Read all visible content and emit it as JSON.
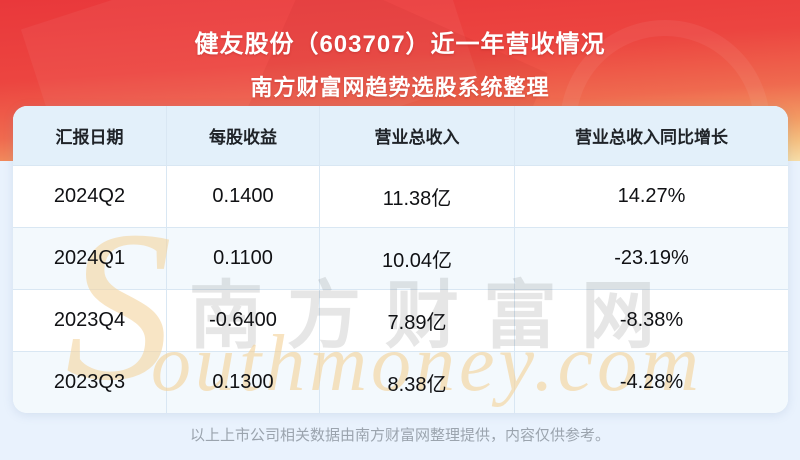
{
  "banner": {
    "title": "健友股份（603707）近一年营收情况",
    "subtitle": "南方财富网趋势选股系统整理"
  },
  "table": {
    "columns": [
      "汇报日期",
      "每股收益",
      "营业总收入",
      "营业总收入同比增长"
    ],
    "rows": [
      [
        "2024Q2",
        "0.1400",
        "11.38亿",
        "14.27%"
      ],
      [
        "2024Q1",
        "0.1100",
        "10.04亿",
        "-23.19%"
      ],
      [
        "2023Q4",
        "-0.6400",
        "7.89亿",
        "-8.38%"
      ],
      [
        "2023Q3",
        "0.1300",
        "8.38亿",
        "-4.28%"
      ]
    ]
  },
  "chart_data": {
    "type": "table",
    "title": "健友股份（603707）近一年营收情况",
    "columns": [
      "汇报日期",
      "每股收益",
      "营业总收入",
      "营业总收入同比增长"
    ],
    "periods": [
      "2024Q2",
      "2024Q1",
      "2023Q4",
      "2023Q3"
    ],
    "eps": [
      0.14,
      0.11,
      -0.64,
      0.13
    ],
    "total_revenue_yi": [
      11.38,
      10.04,
      7.89,
      8.38
    ],
    "revenue_yoy_growth_pct": [
      14.27,
      -23.19,
      -8.38,
      -4.28
    ]
  },
  "watermark": {
    "cjk": "南方财富网",
    "s": "S",
    "rest": "outhmoney.com"
  },
  "footer": {
    "disclaimer": "以上上市公司相关数据由南方财富网整理提供，内容仅供参考。"
  },
  "colors": {
    "banner_red_top": "#e9383b",
    "banner_cream_bottom": "#f6dda8",
    "page_background": "#e9f2fd",
    "header_row_bg": "#e3f0fa",
    "alt_row_bg": "#f3f9fd",
    "divider": "#d9e7f3",
    "footer_text": "#9ba4ae"
  }
}
